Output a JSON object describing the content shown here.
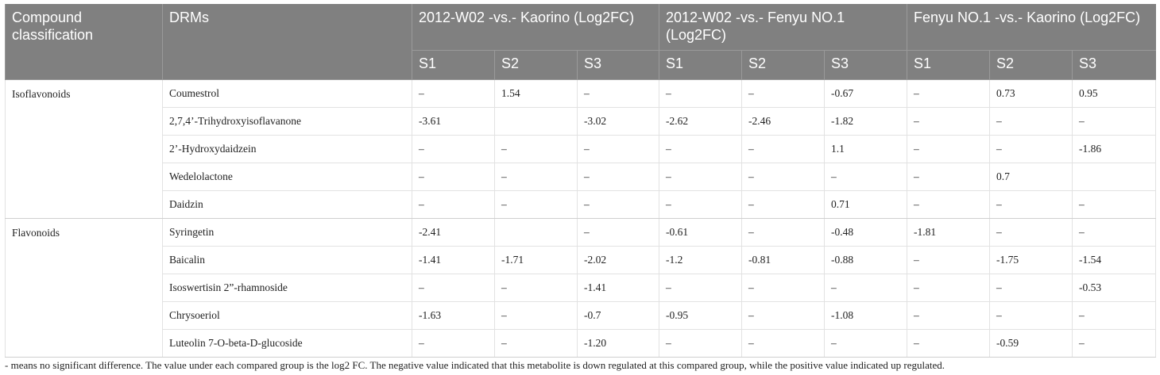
{
  "table": {
    "header": {
      "classification": "Compound classification",
      "drms": "DRMs",
      "groups": [
        {
          "title": "2012-W02 -vs.- Kaorino (Log2FC)",
          "subheaders": [
            "S1",
            "S2",
            "S3"
          ]
        },
        {
          "title": "2012-W02 -vs.- Fenyu NO.1 (Log2FC)",
          "subheaders": [
            "S1",
            "S2",
            "S3"
          ]
        },
        {
          "title": "Fenyu NO.1 -vs.- Kaorino (Log2FC)",
          "subheaders": [
            "S1",
            "S2",
            "S3"
          ]
        }
      ]
    },
    "groups": [
      {
        "classification": "Isoflavonoids",
        "rows": [
          {
            "drm": "Coumestrol",
            "values": [
              "–",
              "1.54",
              "–",
              "–",
              "–",
              "-0.67",
              "–",
              "0.73",
              "0.95"
            ]
          },
          {
            "drm": "2,7,4’-Trihydroxyisoflavanone",
            "values": [
              "-3.61",
              null,
              "-3.02",
              "-2.62",
              "-2.46",
              "-1.82",
              "–",
              "–",
              "–"
            ]
          },
          {
            "drm": "2’-Hydroxydaidzein",
            "values": [
              "–",
              "–",
              "–",
              "–",
              "–",
              "1.1",
              "–",
              "–",
              "-1.86"
            ]
          },
          {
            "drm": "Wedelolactone",
            "values": [
              "–",
              "–",
              "–",
              "–",
              "–",
              "–",
              "–",
              "0.7",
              null
            ]
          },
          {
            "drm": "Daidzin",
            "values": [
              "–",
              "–",
              "–",
              "–",
              "–",
              "0.71",
              "–",
              "–",
              "–"
            ]
          }
        ]
      },
      {
        "classification": "Flavonoids",
        "rows": [
          {
            "drm": "Syringetin",
            "values": [
              "-2.41",
              null,
              "–",
              "-0.61",
              "–",
              "-0.48",
              "-1.81",
              "–",
              "–"
            ]
          },
          {
            "drm": "Baicalin",
            "values": [
              "-1.41",
              "-1.71",
              "-2.02",
              "-1.2",
              "-0.81",
              "-0.88",
              "–",
              "-1.75",
              "-1.54"
            ]
          },
          {
            "drm": "Isoswertisin 2”-rhamnoside",
            "values": [
              "–",
              "–",
              "-1.41",
              "–",
              "–",
              "–",
              "–",
              "–",
              "-0.53"
            ]
          },
          {
            "drm": "Chrysoeriol",
            "values": [
              "-1.63",
              "–",
              "-0.7",
              "-0.95",
              "–",
              "-1.08",
              "–",
              "–",
              "–"
            ]
          },
          {
            "drm": "Luteolin 7-O-beta-D-glucoside",
            "values": [
              "–",
              "–",
              "-1.20",
              "–",
              "–",
              "–",
              "–",
              "-0.59",
              "–"
            ]
          }
        ]
      }
    ]
  },
  "footnote": "- means no significant difference. The value under each compared group is the log2 FC. The negative value indicated that this metabolite is down regulated at this compared group, while the positive value indicated up regulated."
}
